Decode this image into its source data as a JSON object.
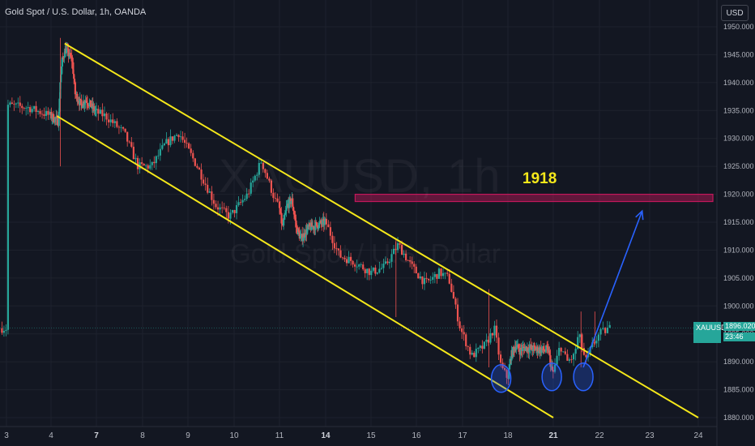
{
  "header": {
    "title": "Gold Spot / U.S. Dollar, 1h, OANDA",
    "currency": "USD"
  },
  "watermark": {
    "symbol": "XAUUSD, 1h",
    "name": "Gold Spot / U.S. Dollar"
  },
  "annotation": {
    "level_label": "1918"
  },
  "price_tag": {
    "symbol": "XAUUSD",
    "price": "1896.020",
    "countdown": "23:46"
  },
  "colors": {
    "background": "#131722",
    "grid": "#1e222d",
    "up": "#26a69a",
    "down": "#ef5350",
    "channel": "#f5e81a",
    "arrow": "#2962ff",
    "zone": "#c2185b"
  },
  "chart_data": {
    "type": "candlestick",
    "y_tick_labels": [
      "1880.000",
      "1885.000",
      "1890.000",
      "1895.000",
      "1900.000",
      "1905.000",
      "1910.000",
      "1915.000",
      "1920.000",
      "1925.000",
      "1930.000",
      "1935.000",
      "1940.000",
      "1945.000",
      "1950.000"
    ],
    "ylim": [
      1878.5,
      1952
    ],
    "x_tick_labels": [
      "3",
      "4",
      "7",
      "8",
      "9",
      "10",
      "11",
      "14",
      "15",
      "16",
      "17",
      "18",
      "21",
      "22",
      "23",
      "24"
    ],
    "x_bold_labels": [
      "7",
      "14",
      "21"
    ],
    "grid": true,
    "last_price": 1896.02,
    "resistance_zone": [
      1918.7,
      1920.0
    ],
    "channel_upper": {
      "start": [
        4.9,
        1947.0
      ],
      "end": [
        24.0,
        1880.0
      ]
    },
    "channel_lower": {
      "start": [
        4.4,
        1934.0
      ],
      "end": [
        21.0,
        1880.0
      ]
    },
    "arrow": {
      "from": [
        21.65,
        1889.0
      ],
      "to": [
        22.85,
        1917.0
      ]
    },
    "highlight_ellipses": [
      {
        "center": [
          17.85,
          1887.0
        ]
      },
      {
        "center": [
          20.9,
          1887.3
        ]
      },
      {
        "center": [
          21.65,
          1887.3
        ]
      }
    ]
  }
}
